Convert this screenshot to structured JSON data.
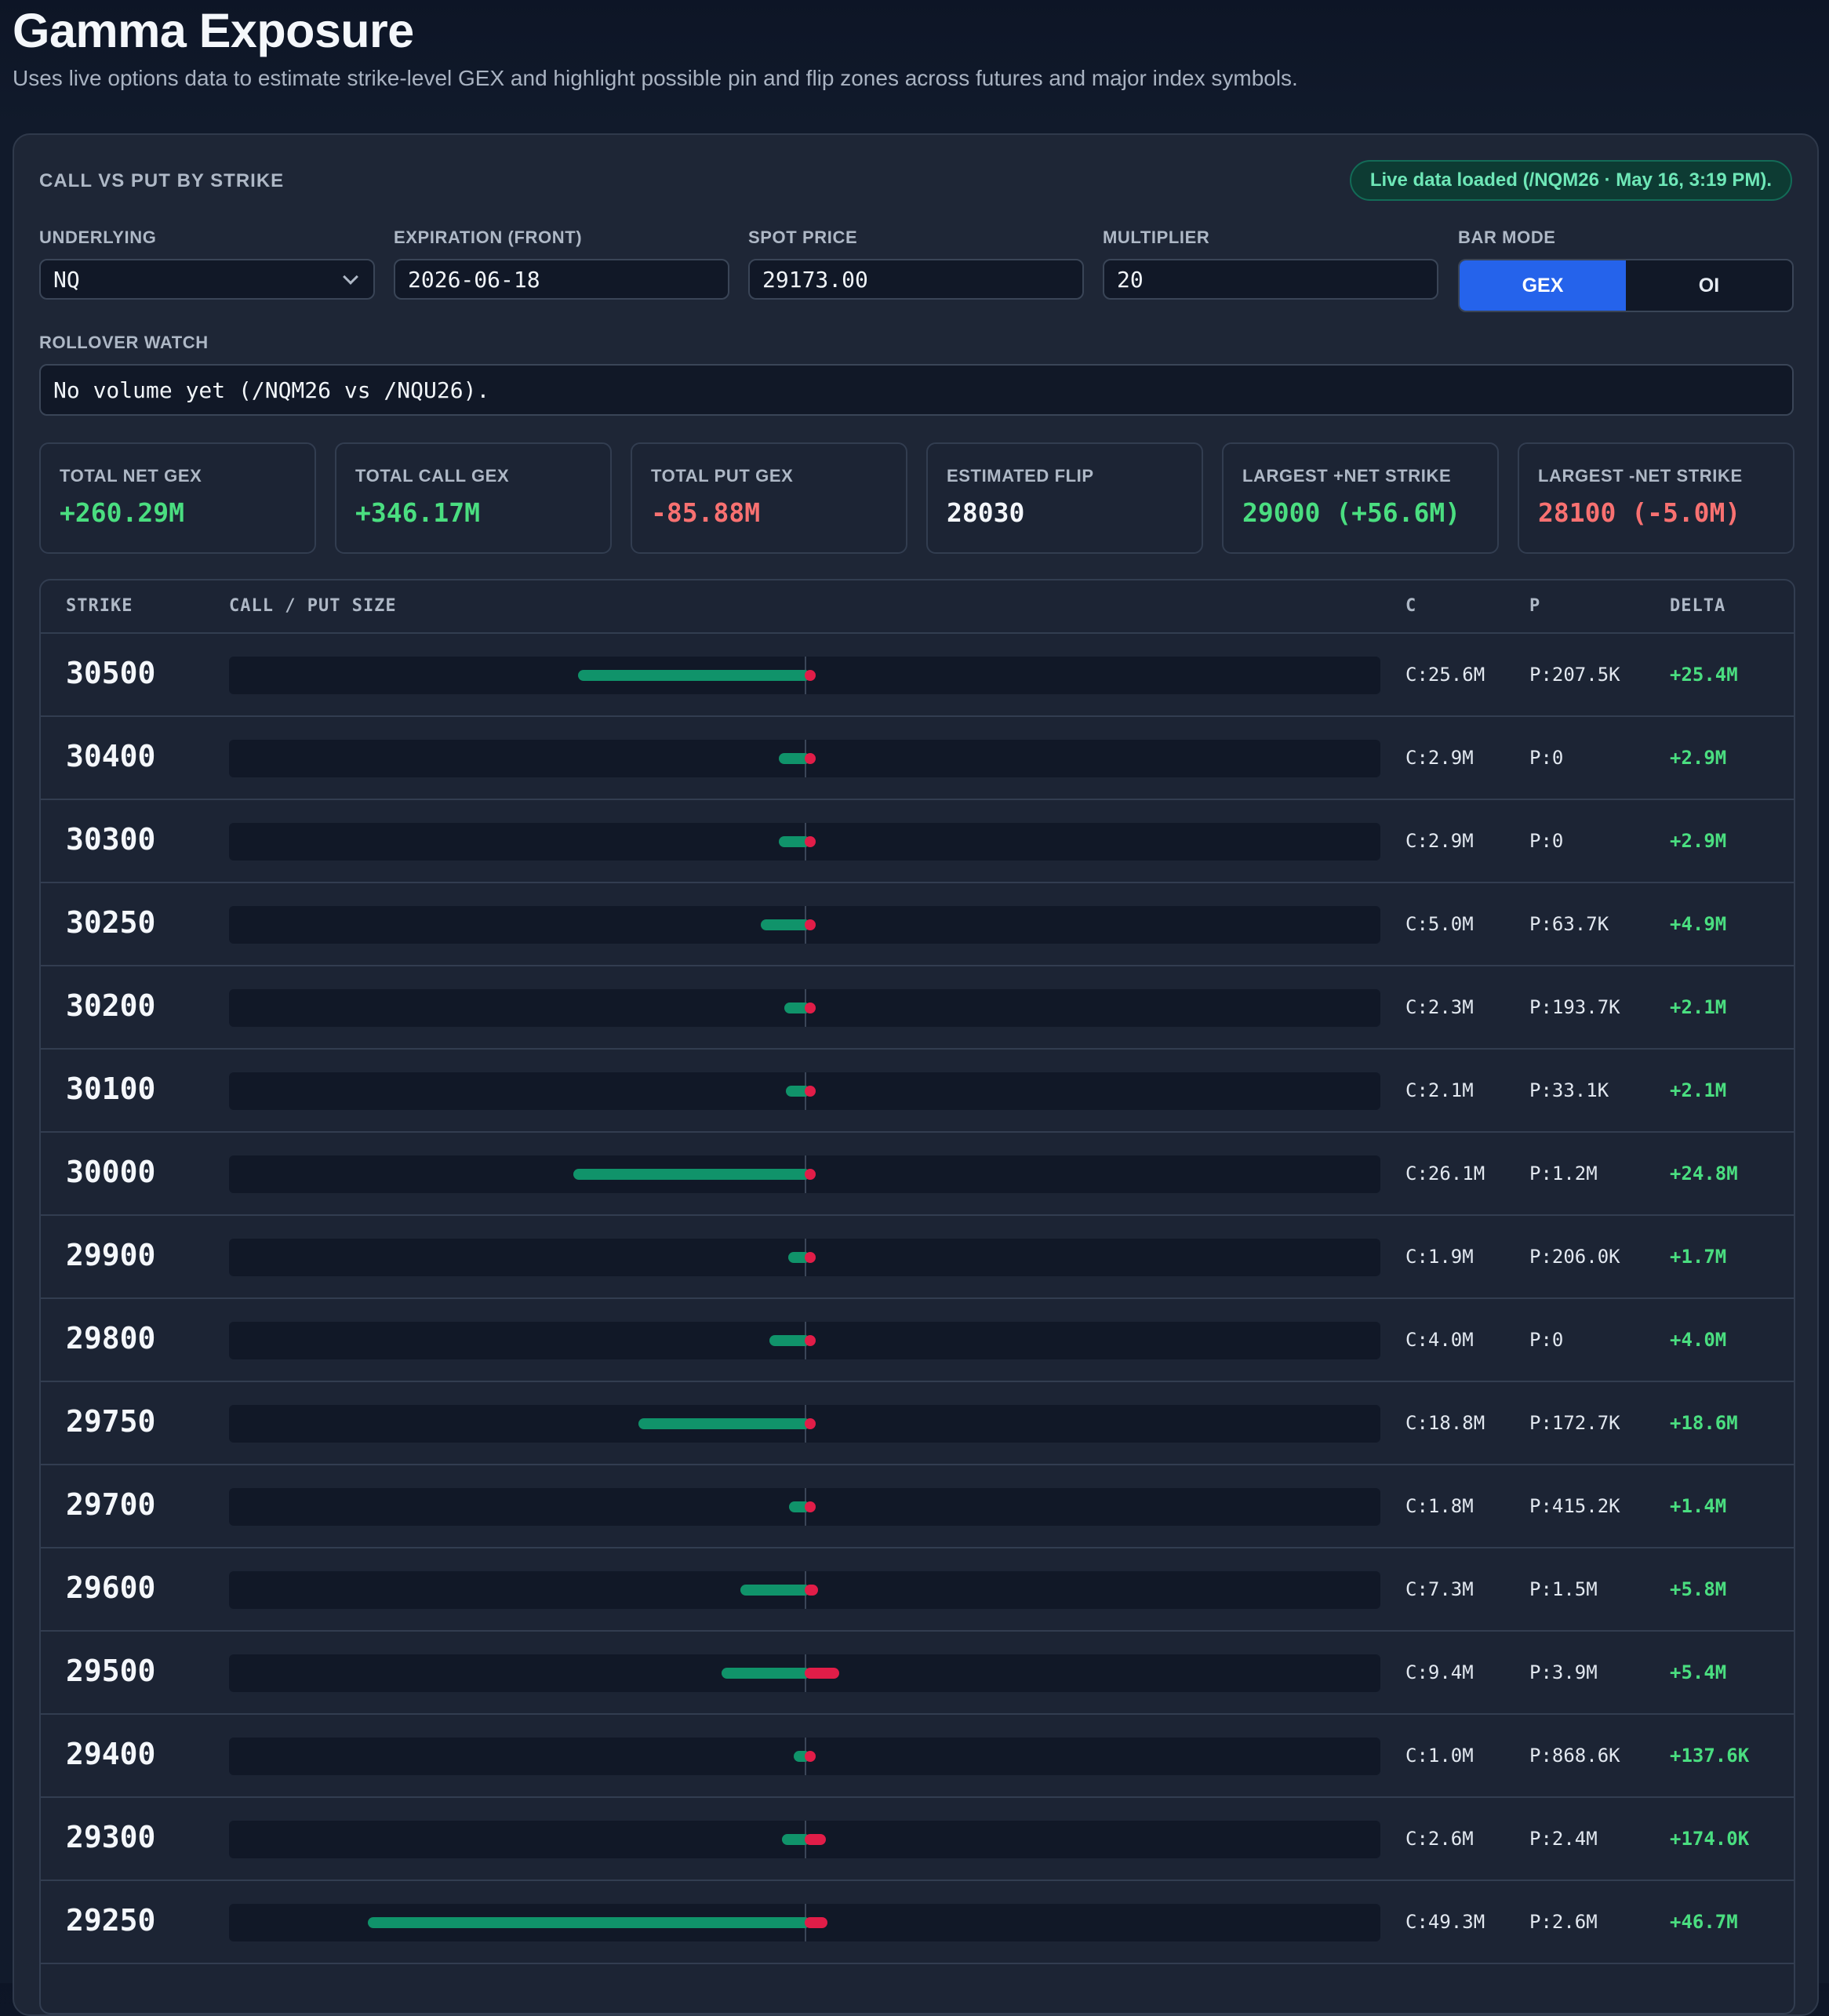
{
  "header": {
    "title": "Gamma Exposure",
    "subtitle": "Uses live options data to estimate strike-level GEX and highlight possible pin and flip zones across futures and major index symbols."
  },
  "panel": {
    "heading": "CALL VS PUT BY STRIKE",
    "status": "Live data loaded (/NQM26 · May 16, 3:19 PM)."
  },
  "controls": {
    "underlying": {
      "label": "UNDERLYING",
      "value": "NQ"
    },
    "expiration": {
      "label": "EXPIRATION (FRONT)",
      "value": "2026-06-18"
    },
    "spot": {
      "label": "SPOT PRICE",
      "value": "29173.00"
    },
    "multiplier": {
      "label": "MULTIPLIER",
      "value": "20"
    },
    "bar_mode": {
      "label": "BAR MODE",
      "options": [
        "GEX",
        "OI"
      ],
      "selected": "GEX"
    },
    "rollover": {
      "label": "ROLLOVER WATCH",
      "value": "No volume yet (/NQM26 vs /NQU26)."
    }
  },
  "stats": [
    {
      "label": "TOTAL NET GEX",
      "value": "+260.29M",
      "tone": "pos"
    },
    {
      "label": "TOTAL CALL GEX",
      "value": "+346.17M",
      "tone": "pos"
    },
    {
      "label": "TOTAL PUT GEX",
      "value": "-85.88M",
      "tone": "neg"
    },
    {
      "label": "ESTIMATED FLIP",
      "value": "28030",
      "tone": "neutral"
    },
    {
      "label": "LARGEST +NET STRIKE",
      "value": "29000 (+56.6M)",
      "tone": "pos"
    },
    {
      "label": "LARGEST -NET STRIKE",
      "value": "28100 (-5.0M)",
      "tone": "neg"
    }
  ],
  "table": {
    "columns": {
      "strike": "STRIKE",
      "size": "CALL / PUT SIZE",
      "c": "C",
      "p": "P",
      "delta": "DELTA"
    },
    "rows": [
      {
        "strike": "30500",
        "c": "C:25.6M",
        "p": "P:207.5K",
        "delta": "+25.4M",
        "call": 25.6,
        "put": 0.2075
      },
      {
        "strike": "30400",
        "c": "C:2.9M",
        "p": "P:0",
        "delta": "+2.9M",
        "call": 2.9,
        "put": 0
      },
      {
        "strike": "30300",
        "c": "C:2.9M",
        "p": "P:0",
        "delta": "+2.9M",
        "call": 2.9,
        "put": 0
      },
      {
        "strike": "30250",
        "c": "C:5.0M",
        "p": "P:63.7K",
        "delta": "+4.9M",
        "call": 5.0,
        "put": 0.0637
      },
      {
        "strike": "30200",
        "c": "C:2.3M",
        "p": "P:193.7K",
        "delta": "+2.1M",
        "call": 2.3,
        "put": 0.1937
      },
      {
        "strike": "30100",
        "c": "C:2.1M",
        "p": "P:33.1K",
        "delta": "+2.1M",
        "call": 2.1,
        "put": 0.0331
      },
      {
        "strike": "30000",
        "c": "C:26.1M",
        "p": "P:1.2M",
        "delta": "+24.8M",
        "call": 26.1,
        "put": 1.2
      },
      {
        "strike": "29900",
        "c": "C:1.9M",
        "p": "P:206.0K",
        "delta": "+1.7M",
        "call": 1.9,
        "put": 0.206
      },
      {
        "strike": "29800",
        "c": "C:4.0M",
        "p": "P:0",
        "delta": "+4.0M",
        "call": 4.0,
        "put": 0
      },
      {
        "strike": "29750",
        "c": "C:18.8M",
        "p": "P:172.7K",
        "delta": "+18.6M",
        "call": 18.8,
        "put": 0.1727
      },
      {
        "strike": "29700",
        "c": "C:1.8M",
        "p": "P:415.2K",
        "delta": "+1.4M",
        "call": 1.8,
        "put": 0.4152
      },
      {
        "strike": "29600",
        "c": "C:7.3M",
        "p": "P:1.5M",
        "delta": "+5.8M",
        "call": 7.3,
        "put": 1.5
      },
      {
        "strike": "29500",
        "c": "C:9.4M",
        "p": "P:3.9M",
        "delta": "+5.4M",
        "call": 9.4,
        "put": 3.9
      },
      {
        "strike": "29400",
        "c": "C:1.0M",
        "p": "P:868.6K",
        "delta": "+137.6K",
        "call": 1.0,
        "put": 0.8686
      },
      {
        "strike": "29300",
        "c": "C:2.6M",
        "p": "P:2.4M",
        "delta": "+174.0K",
        "call": 2.6,
        "put": 2.4
      },
      {
        "strike": "29250",
        "c": "C:49.3M",
        "p": "P:2.6M",
        "delta": "+46.7M",
        "call": 49.3,
        "put": 2.6
      }
    ]
  },
  "colors": {
    "call": "#10936a",
    "put": "#e11d48",
    "accent": "#2563eb",
    "positive": "#4ade80",
    "negative": "#f87171"
  }
}
